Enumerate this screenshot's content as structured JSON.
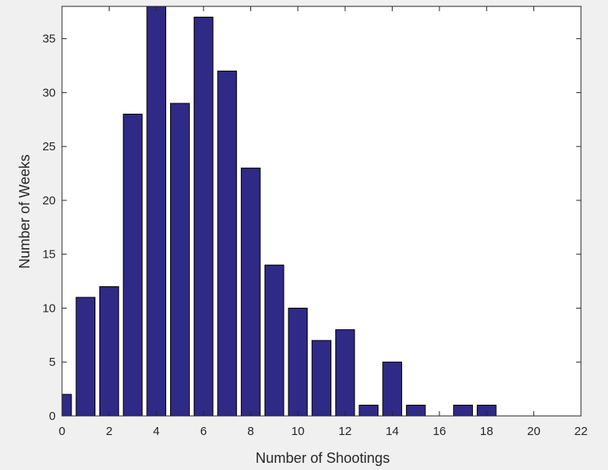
{
  "colors": {
    "figure_background": "#f0f0f0",
    "axes_background": "#ffffff",
    "bar_fill": "#2f2a85",
    "bar_edge": "#000000",
    "axis_color": "#262626"
  },
  "chart_data": {
    "type": "bar",
    "title": "",
    "xlabel": "Number of Shootings",
    "ylabel": "Number of Weeks",
    "x": [
      0,
      1,
      2,
      3,
      4,
      5,
      6,
      7,
      8,
      9,
      10,
      11,
      12,
      13,
      14,
      15,
      16,
      17,
      18
    ],
    "values": [
      2,
      11,
      12,
      28,
      38,
      29,
      37,
      32,
      23,
      14,
      10,
      7,
      8,
      1,
      5,
      1,
      0,
      1,
      1
    ],
    "xlim": [
      0,
      22
    ],
    "ylim": [
      0,
      38
    ],
    "xticks": [
      0,
      2,
      4,
      6,
      8,
      10,
      12,
      14,
      16,
      18,
      20,
      22
    ],
    "yticks": [
      0,
      5,
      10,
      15,
      20,
      25,
      30,
      35
    ],
    "grid": false,
    "legend": "none"
  }
}
